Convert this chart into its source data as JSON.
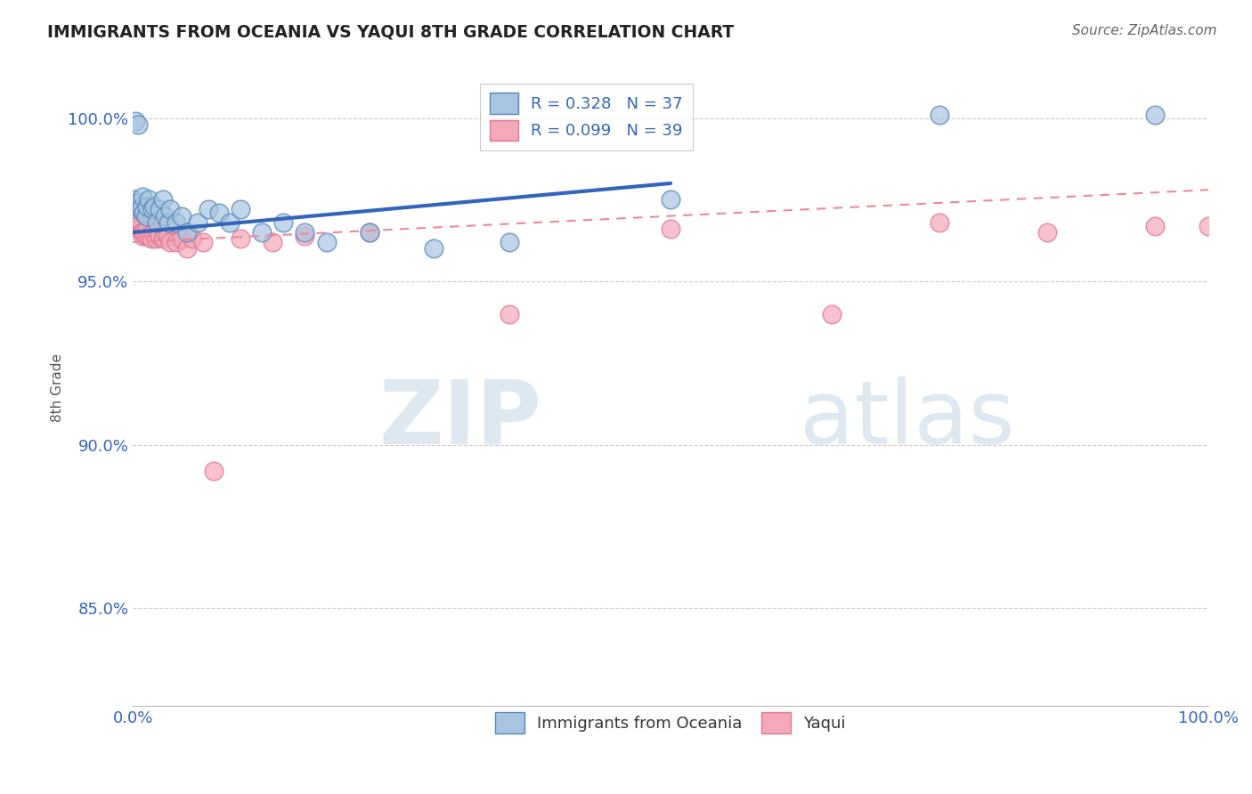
{
  "title": "IMMIGRANTS FROM OCEANIA VS YAQUI 8TH GRADE CORRELATION CHART",
  "source": "Source: ZipAtlas.com",
  "ylabel": "8th Grade",
  "legend_blue_label": "Immigrants from Oceania",
  "legend_pink_label": "Yaqui",
  "R_blue": 0.328,
  "N_blue": 37,
  "R_pink": 0.099,
  "N_pink": 39,
  "blue_color": "#a8c4e0",
  "pink_color": "#f4a8b8",
  "blue_edge_color": "#5588bb",
  "pink_edge_color": "#dd7799",
  "blue_line_color": "#3366bb",
  "pink_line_color": "#ee8899",
  "text_color": "#3366bb",
  "grid_color": "#cccccc",
  "watermark_color": "#dde8f0",
  "xlim": [
    0.0,
    1.0
  ],
  "ylim": [
    0.82,
    1.015
  ],
  "y_ticks": [
    0.85,
    0.9,
    0.95,
    1.0
  ],
  "y_tick_labels": [
    "85.0%",
    "90.0%",
    "95.0%",
    "100.0%"
  ],
  "x_ticks": [
    0.0,
    0.25,
    0.5,
    0.75,
    1.0
  ],
  "x_tick_labels": [
    "0.0%",
    "",
    "",
    "",
    "100.0%"
  ],
  "blue_x": [
    0.001,
    0.002,
    0.003,
    0.005,
    0.007,
    0.008,
    0.009,
    0.01,
    0.012,
    0.013,
    0.015,
    0.018,
    0.02,
    0.022,
    0.025,
    0.028,
    0.03,
    0.033,
    0.035,
    0.04,
    0.045,
    0.05,
    0.06,
    0.07,
    0.08,
    0.09,
    0.1,
    0.12,
    0.14,
    0.16,
    0.18,
    0.22,
    0.28,
    0.35,
    0.5,
    0.75,
    0.95
  ],
  "blue_y": [
    0.975,
    0.999,
    0.974,
    0.998,
    0.972,
    0.973,
    0.976,
    0.971,
    0.97,
    0.973,
    0.975,
    0.972,
    0.973,
    0.968,
    0.972,
    0.975,
    0.97,
    0.968,
    0.972,
    0.968,
    0.97,
    0.965,
    0.968,
    0.972,
    0.971,
    0.968,
    0.972,
    0.965,
    0.968,
    0.965,
    0.962,
    0.965,
    0.96,
    0.962,
    0.975,
    1.001,
    1.001
  ],
  "pink_x": [
    0.001,
    0.002,
    0.003,
    0.004,
    0.005,
    0.006,
    0.007,
    0.008,
    0.009,
    0.01,
    0.012,
    0.013,
    0.015,
    0.017,
    0.019,
    0.021,
    0.023,
    0.025,
    0.028,
    0.03,
    0.033,
    0.035,
    0.04,
    0.045,
    0.05,
    0.055,
    0.065,
    0.075,
    0.1,
    0.13,
    0.16,
    0.22,
    0.35,
    0.5,
    0.65,
    0.75,
    0.85,
    0.95,
    1.0
  ],
  "pink_y": [
    0.972,
    0.974,
    0.97,
    0.968,
    0.967,
    0.966,
    0.968,
    0.965,
    0.964,
    0.965,
    0.964,
    0.966,
    0.964,
    0.963,
    0.965,
    0.963,
    0.965,
    0.964,
    0.963,
    0.965,
    0.964,
    0.962,
    0.962,
    0.963,
    0.96,
    0.963,
    0.962,
    0.892,
    0.963,
    0.962,
    0.964,
    0.965,
    0.94,
    0.966,
    0.94,
    0.968,
    0.965,
    0.967,
    0.967
  ],
  "blue_line_x0": 0.0,
  "blue_line_x1": 1.0,
  "blue_line_y0": 0.965,
  "blue_line_y1": 0.995,
  "pink_line_x0": 0.0,
  "pink_line_x1": 1.0,
  "pink_line_y0": 0.962,
  "pink_line_y1": 0.978
}
